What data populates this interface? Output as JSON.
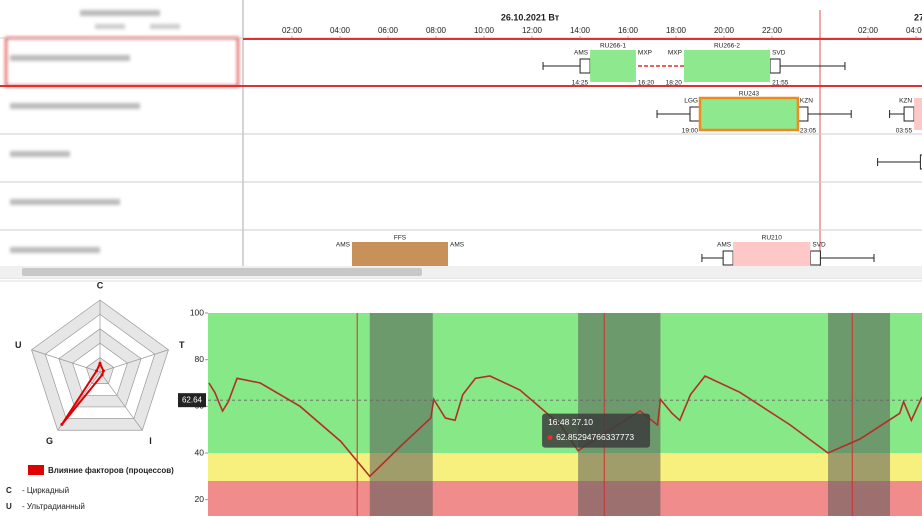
{
  "gantt": {
    "date": "26.10.2021 Вт",
    "next_date": "27",
    "xlim": [
      0,
      28.25
    ],
    "day_boundary": 24,
    "hours": [
      {
        "value": 2,
        "label": "02:00"
      },
      {
        "value": 4,
        "label": "04:00"
      },
      {
        "value": 6,
        "label": "06:00"
      },
      {
        "value": 8,
        "label": "08:00"
      },
      {
        "value": 10,
        "label": "10:00"
      },
      {
        "value": 12,
        "label": "12:00"
      },
      {
        "value": 14,
        "label": "14:00"
      },
      {
        "value": 16,
        "label": "16:00"
      },
      {
        "value": 18,
        "label": "18:00"
      },
      {
        "value": 20,
        "label": "20:00"
      },
      {
        "value": 22,
        "label": "22:00"
      },
      {
        "value": 26,
        "label": "02:00"
      },
      {
        "value": 28,
        "label": "04:00"
      }
    ],
    "rows": [
      {
        "flights": [
          {
            "name": "RU266-1",
            "from": "AMS",
            "to": "MXP",
            "dep": "14:25",
            "arr": "16:20",
            "start": 14.42,
            "end": 16.33,
            "color": "#8ee88e",
            "wl": 12.46
          },
          {
            "name": "RU266-2",
            "from": "MXP",
            "to": "SVD",
            "dep": "18:20",
            "arr": "21:55",
            "start": 18.33,
            "end": 21.92,
            "color": "#8ee88e",
            "wr": 25.04
          }
        ]
      },
      {
        "flights": [
          {
            "name": "RU243",
            "from": "LGG",
            "to": "KZN",
            "dep": "19:00",
            "arr": "23:05",
            "start": 19.0,
            "end": 23.08,
            "color": "#8ee88e",
            "border": "#f08a1c",
            "wl": 17.21,
            "wr": 25.3
          },
          {
            "from": "KZN",
            "dep": "03:55",
            "start": 27.92,
            "end": 31.0,
            "color": "#ffc8c8",
            "wl": 26.9
          }
        ]
      },
      {
        "flights": [
          {
            "start": 28.6,
            "end": 31.0,
            "color": "#ffc8c8",
            "wl": 26.4
          }
        ]
      },
      {
        "flights": []
      },
      {
        "flights": [
          {
            "name": "FFS",
            "from": "AMS",
            "to": "AMS",
            "start": 4.5,
            "end": 8.5,
            "color": "#c8915a"
          },
          {
            "name": "RU210",
            "from": "AMS",
            "to": "SVD",
            "start": 20.38,
            "end": 23.6,
            "color": "#ffc8c8",
            "wl": 19.08,
            "wr": 26.25
          }
        ]
      }
    ]
  },
  "radar": {
    "type": "radar",
    "axes": [
      "C",
      "T",
      "I",
      "G",
      "U"
    ],
    "values": [
      12,
      5,
      5,
      90,
      5
    ],
    "rlim": [
      0,
      100
    ],
    "series_name": "Влияние факторов (процессов)",
    "color": "#e00000",
    "notes": [
      {
        "key": "C",
        "text": "- Циркадный"
      },
      {
        "key": "U",
        "text": "- Ультрадианный"
      }
    ]
  },
  "line_chart": {
    "type": "line",
    "xlim": [
      2.6,
      76.3
    ],
    "ylim": [
      13,
      100
    ],
    "yticks": [
      20,
      40,
      60,
      80,
      100
    ],
    "zones": [
      {
        "from": 40,
        "to": 100,
        "color": "#86e886"
      },
      {
        "from": 28,
        "to": 40,
        "color": "#f7f07e"
      },
      {
        "from": 13,
        "to": 28,
        "color": "#f08c8c"
      }
    ],
    "shaded": [
      [
        19.3,
        25.8
      ],
      [
        40.8,
        49.3
      ],
      [
        66.6,
        73.0
      ]
    ],
    "markers": [
      18.0,
      43.5,
      69.1
    ],
    "reference": 62.64,
    "x": [
      2.7,
      3.3,
      4.1,
      4.7,
      5.6,
      8.0,
      12.1,
      16.3,
      19.3,
      22.5,
      25.6,
      25.9,
      27.1,
      28.1,
      28.9,
      30.2,
      31.7,
      34.8,
      39.0,
      40.8,
      44.1,
      47.2,
      49.0,
      49.3,
      50.5,
      51.3,
      52.4,
      53.9,
      57.5,
      62.7,
      66.6,
      69.9,
      74.0,
      74.4,
      75.2,
      76.3
    ],
    "series": [
      {
        "color": "#b03028",
        "values": [
          70,
          66,
          58,
          62,
          72,
          70,
          60,
          45,
          30,
          43,
          55,
          63,
          55,
          54,
          65,
          72,
          73,
          67,
          52,
          41,
          50,
          58,
          52,
          63,
          57,
          54,
          65,
          73,
          66,
          52,
          40,
          46,
          57,
          62,
          54,
          64
        ]
      }
    ],
    "tooltip": {
      "title": "16:48 27.10",
      "x": 40.8,
      "y": 41,
      "value": 62.85294766337773
    }
  }
}
